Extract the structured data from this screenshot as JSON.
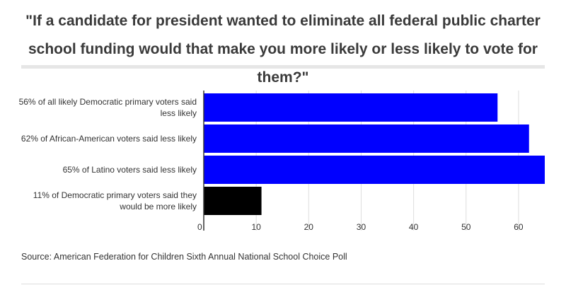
{
  "header": {
    "title": "\"If a candidate for president wanted to eliminate all federal public charter school funding would that make you more likely or less likely to vote for them?\""
  },
  "footer": {
    "source": "Source: American Federation for Children Sixth Annual National School Choice Poll"
  },
  "chart_data": {
    "type": "bar",
    "orientation": "horizontal",
    "title": "\"If a candidate for president wanted to eliminate all federal public charter school funding would that make you more likely or less likely to vote for them?\"",
    "categories": [
      "56% of all likely Democratic primary voters said less likely",
      "62% of African-American voters said less likely",
      "65% of Latino voters said less likely",
      "11% of Democratic primary voters said they would be more likely"
    ],
    "values": [
      56,
      62,
      65,
      11
    ],
    "bar_colors": [
      "#0000ff",
      "#0000ff",
      "#0000ff",
      "#000000"
    ],
    "xlim": [
      0,
      65
    ],
    "xticks": [
      0,
      10,
      20,
      30,
      40,
      50,
      60
    ],
    "grid": true,
    "legend": "none",
    "xlabel": "",
    "ylabel": ""
  }
}
